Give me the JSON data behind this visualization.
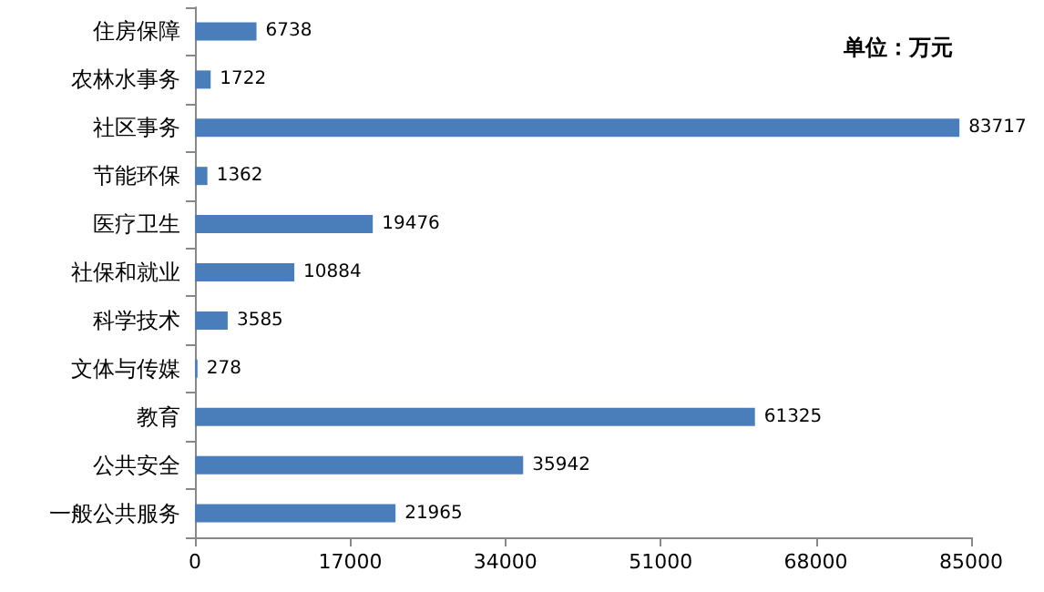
{
  "chart_data": {
    "type": "bar",
    "orientation": "horizontal",
    "categories": [
      "住房保障",
      "农林水事务",
      "社区事务",
      "节能环保",
      "医疗卫生",
      "社保和就业",
      "科学技术",
      "文体与传媒",
      "教育",
      "公共安全",
      "一般公共服务"
    ],
    "values": [
      6738,
      1722,
      83717,
      1362,
      19476,
      10884,
      3585,
      278,
      61325,
      35942,
      21965
    ],
    "color": "#4a7ebb",
    "data_labels": true,
    "grid": false,
    "xlim": [
      0,
      85000
    ],
    "xticks": [
      0,
      17000,
      34000,
      51000,
      68000,
      85000
    ],
    "annotations": [
      "单位：万元"
    ]
  }
}
